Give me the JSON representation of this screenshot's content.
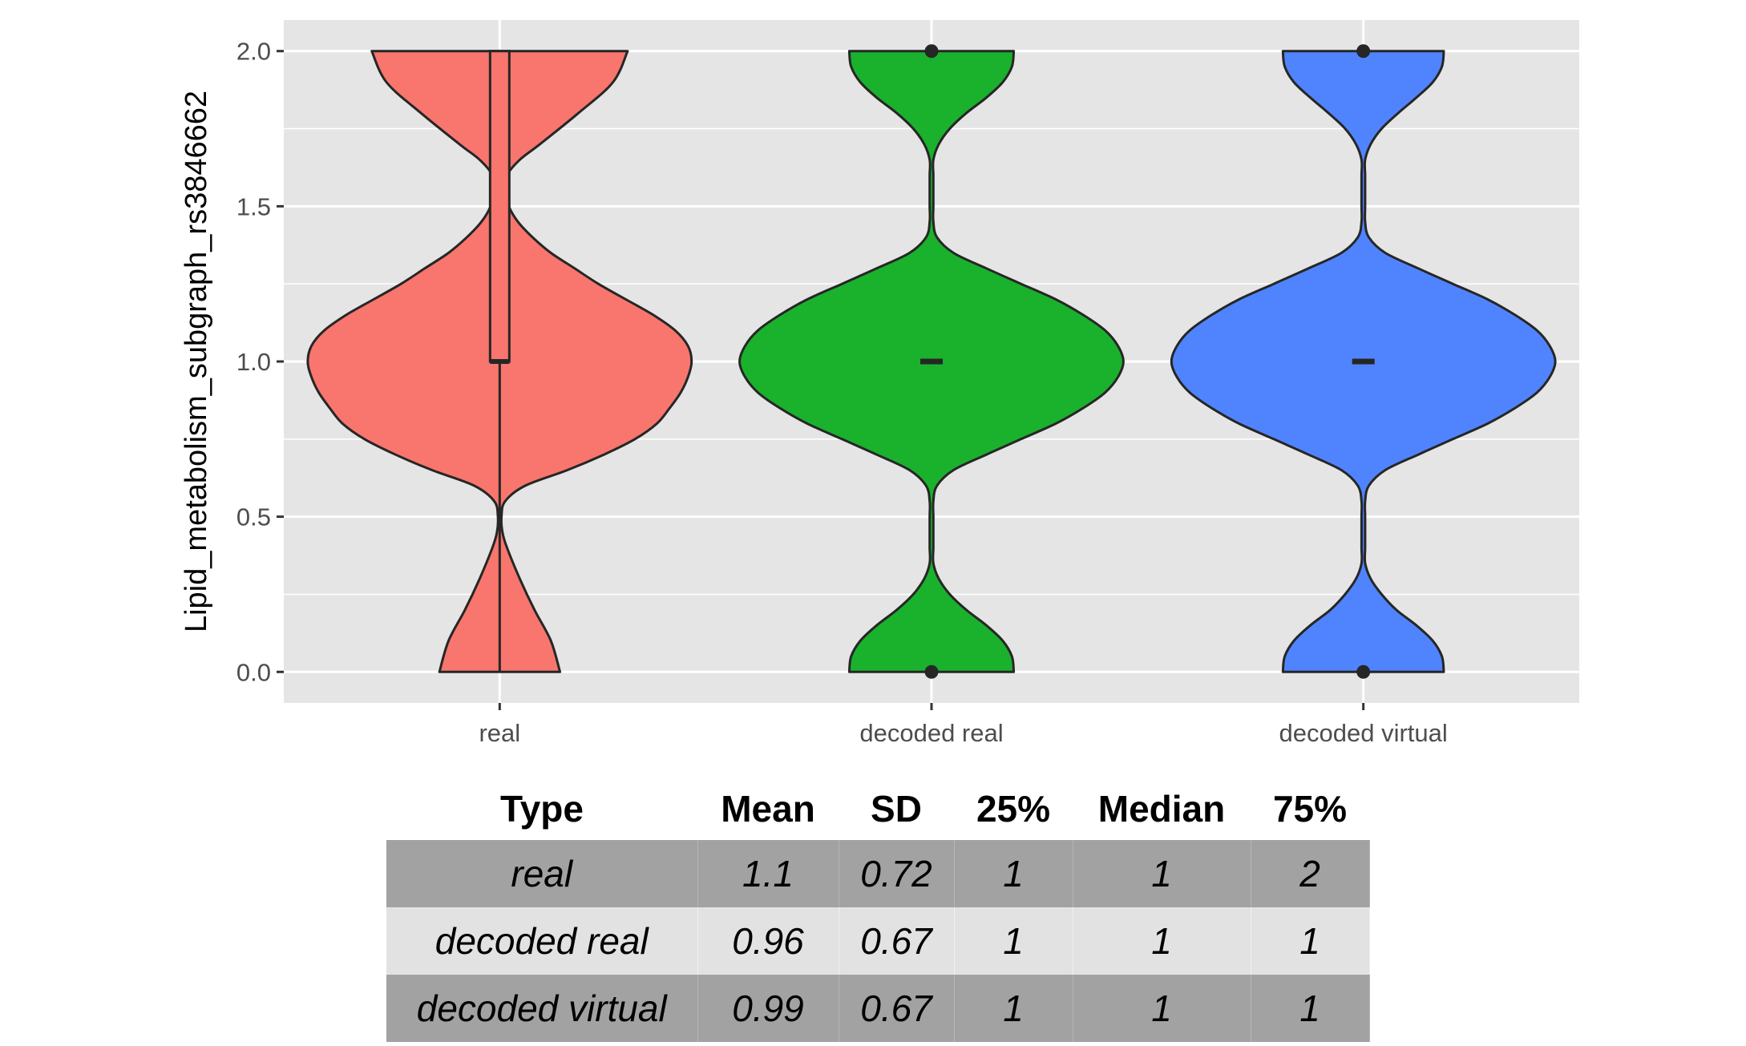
{
  "chart_data": {
    "type": "violin",
    "title": "",
    "xlabel": "",
    "ylabel": "Lipid_metabolism_subgraph_rs3846662",
    "ylim": [
      -0.1,
      2.1
    ],
    "yticks": [
      0.0,
      0.5,
      1.0,
      1.5,
      2.0
    ],
    "ytick_labels": [
      "0.0",
      "0.5",
      "1.0",
      "1.5",
      "2.0"
    ],
    "categories": [
      "real",
      "decoded real",
      "decoded virtual"
    ],
    "grid": true,
    "legend": "none",
    "series": [
      {
        "category": "real",
        "color": "#F8766D",
        "density_y": [
          0.0,
          0.1,
          0.2,
          0.3,
          0.4,
          0.45,
          0.5,
          0.55,
          0.6,
          0.65,
          0.7,
          0.75,
          0.8,
          0.85,
          0.9,
          0.95,
          1.0,
          1.05,
          1.1,
          1.15,
          1.2,
          1.25,
          1.3,
          1.35,
          1.4,
          1.45,
          1.5,
          1.55,
          1.6,
          1.65,
          1.7,
          1.8,
          1.9,
          2.0
        ],
        "density_halfwidth": [
          0.33,
          0.28,
          0.19,
          0.11,
          0.04,
          0.015,
          0.01,
          0.03,
          0.14,
          0.37,
          0.57,
          0.74,
          0.86,
          0.93,
          0.99,
          1.03,
          1.05,
          1.03,
          0.96,
          0.84,
          0.69,
          0.54,
          0.41,
          0.28,
          0.18,
          0.1,
          0.05,
          0.03,
          0.04,
          0.11,
          0.22,
          0.43,
          0.62,
          0.7
        ],
        "box": {
          "q1": 1,
          "median": 1,
          "q3": 2,
          "whisker_low": 0,
          "whisker_high": 2
        },
        "outliers": []
      },
      {
        "category": "decoded real",
        "color": "#1AB12D",
        "density_y": [
          0.0,
          0.05,
          0.1,
          0.15,
          0.2,
          0.25,
          0.3,
          0.35,
          0.4,
          0.45,
          0.5,
          0.55,
          0.6,
          0.65,
          0.7,
          0.75,
          0.8,
          0.85,
          0.9,
          0.95,
          1.0,
          1.05,
          1.1,
          1.15,
          1.2,
          1.25,
          1.3,
          1.35,
          1.4,
          1.45,
          1.5,
          1.55,
          1.6,
          1.65,
          1.7,
          1.75,
          1.8,
          1.85,
          1.9,
          1.95,
          2.0
        ],
        "density_halfwidth": [
          0.45,
          0.44,
          0.39,
          0.3,
          0.19,
          0.1,
          0.04,
          0.01,
          0.01,
          0.01,
          0.01,
          0.01,
          0.03,
          0.12,
          0.3,
          0.49,
          0.68,
          0.83,
          0.95,
          1.02,
          1.05,
          1.02,
          0.95,
          0.83,
          0.68,
          0.49,
          0.3,
          0.12,
          0.03,
          0.01,
          0.01,
          0.01,
          0.01,
          0.01,
          0.04,
          0.1,
          0.19,
          0.3,
          0.39,
          0.44,
          0.45
        ],
        "box": {
          "q1": 1,
          "median": 1,
          "q3": 1,
          "whisker_low": 1,
          "whisker_high": 1
        },
        "outliers": [
          0,
          2
        ]
      },
      {
        "category": "decoded virtual",
        "color": "#5084FF",
        "density_y": [
          0.0,
          0.05,
          0.1,
          0.15,
          0.2,
          0.25,
          0.3,
          0.35,
          0.4,
          0.45,
          0.5,
          0.55,
          0.6,
          0.65,
          0.7,
          0.75,
          0.8,
          0.85,
          0.9,
          0.95,
          1.0,
          1.05,
          1.1,
          1.15,
          1.2,
          1.25,
          1.3,
          1.35,
          1.4,
          1.45,
          1.5,
          1.55,
          1.6,
          1.65,
          1.7,
          1.75,
          1.8,
          1.85,
          1.9,
          1.95,
          2.0
        ],
        "density_halfwidth": [
          0.44,
          0.43,
          0.38,
          0.29,
          0.18,
          0.1,
          0.04,
          0.01,
          0.01,
          0.01,
          0.01,
          0.01,
          0.03,
          0.12,
          0.3,
          0.49,
          0.68,
          0.83,
          0.95,
          1.02,
          1.05,
          1.02,
          0.95,
          0.83,
          0.68,
          0.49,
          0.3,
          0.12,
          0.03,
          0.01,
          0.01,
          0.01,
          0.01,
          0.01,
          0.04,
          0.1,
          0.19,
          0.29,
          0.38,
          0.43,
          0.44
        ],
        "box": {
          "q1": 1,
          "median": 1,
          "q3": 1,
          "whisker_low": 1,
          "whisker_high": 1
        },
        "outliers": [
          0,
          2
        ]
      }
    ],
    "colors": {
      "panel_background": "#E5E5E5",
      "grid": "#FFFFFF",
      "outline": "#262626"
    }
  },
  "table": {
    "headers": [
      "Type",
      "Mean",
      "SD",
      "25%",
      "Median",
      "75%"
    ],
    "rows": [
      [
        "real",
        "1.1",
        "0.72",
        "1",
        "1",
        "2"
      ],
      [
        "decoded real",
        "0.96",
        "0.67",
        "1",
        "1",
        "1"
      ],
      [
        "decoded virtual",
        "0.99",
        "0.67",
        "1",
        "1",
        "1"
      ]
    ],
    "row_colors": [
      "#A2A2A2",
      "#E2E2E2",
      "#A2A2A2"
    ]
  }
}
